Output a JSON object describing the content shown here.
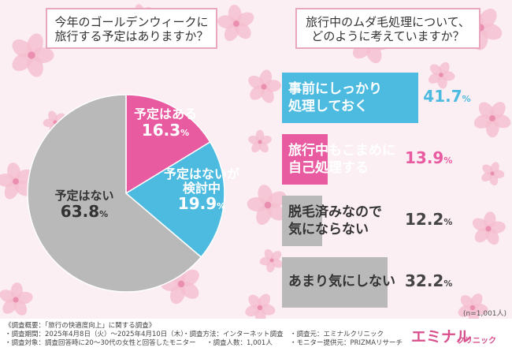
{
  "left_title": {
    "line1": "今年のゴールデンウィークに",
    "line2": "旅行する予定はありますか？"
  },
  "right_title": {
    "line1": "旅行中のムダ毛処理について、",
    "line2": "どのように考えていますか？"
  },
  "chart_data": [
    {
      "type": "pie",
      "title": "今年のゴールデンウィークに旅行する予定はありますか？",
      "slices": [
        {
          "label": "予定はある",
          "value": 16.3,
          "color": "#e85ba0"
        },
        {
          "label": "予定はないが検討中",
          "value": 19.9,
          "color": "#4dbbe0"
        },
        {
          "label": "予定はない",
          "value": 63.8,
          "color": "#b9b9b9"
        }
      ]
    },
    {
      "type": "bar",
      "orientation": "horizontal",
      "title": "旅行中のムダ毛処理について、どのように考えていますか？",
      "categories": [
        "事前にしっかり処理しておく",
        "旅行中もこまめに自己処理する",
        "脱毛済みなので気にならない",
        "あまり気にしない"
      ],
      "values": [
        41.7,
        13.9,
        12.2,
        32.2
      ],
      "colors": [
        "#4dbbe0",
        "#e85ba0",
        "#b9b9b9",
        "#b9b9b9"
      ],
      "text_colors": [
        "#ffffff",
        "#ffffff",
        "#333333",
        "#333333"
      ],
      "pct_colors": [
        "#4dbbe0",
        "#e85ba0",
        "#444444",
        "#444444"
      ]
    }
  ],
  "pie_labels": {
    "s1": {
      "line1": "予定はある",
      "num": "16.3",
      "sign": "%"
    },
    "s2": {
      "line1": "予定はないが",
      "line2": "検討中",
      "num": "19.9",
      "sign": "%"
    },
    "s3": {
      "line1": "予定はない",
      "num": "63.8",
      "sign": "%"
    }
  },
  "bar_labels": [
    {
      "line1": "事前にしっかり",
      "line2": "処理しておく",
      "num": "41.7",
      "sign": "%"
    },
    {
      "line1": "旅行中もこまめに",
      "line2": "自己処理する",
      "num": "13.9",
      "sign": "%"
    },
    {
      "line1": "脱毛済みなので",
      "line2": "気にならない",
      "num": "12.2",
      "sign": "%"
    },
    {
      "line1": "あまり気にしない",
      "line2": "",
      "num": "32.2",
      "sign": "%"
    }
  ],
  "n_note": "(n=1,001人)",
  "footer": {
    "l1": "《調査概要：「旅行の快適度向上」に関する調査》",
    "l2a": "・調査期間：2025年4月8日（火）～2025年4月10日（木）",
    "l2b": "・調査方法：インターネット調査",
    "l2c": "・調査元：エミナルクリニック",
    "l3a": "・調査対象：調査回答時に20～30代の女性と回答したモニター",
    "l3b": "・調査人数：1,001人",
    "l3c": "・モニター提供元：PRIZMAリサーチ"
  },
  "logo": {
    "main": "エミナル",
    "sub": "クリニック"
  }
}
